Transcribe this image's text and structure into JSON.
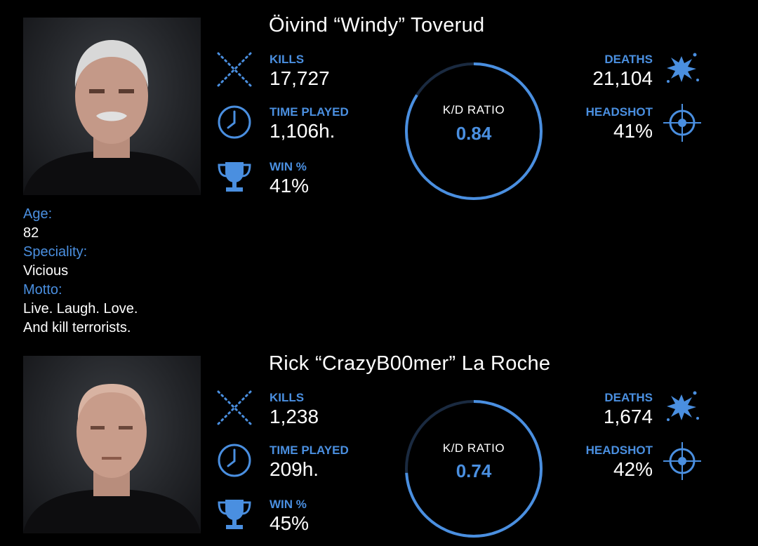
{
  "players": [
    {
      "name": "Öivind “Windy” Toverud",
      "kills_label": "KILLS",
      "kills": "17,727",
      "time_label": "TIME PLAYED",
      "time": "1,106h.",
      "win_label": "WIN %",
      "win": "41%",
      "kd_label": "K/D RATIO",
      "kd": "0.84",
      "kd_fraction": 0.84,
      "deaths_label": "DEATHS",
      "deaths": "21,104",
      "headshot_label": "HEADSHOT",
      "headshot": "41%",
      "bio": {
        "age_label": "Age:",
        "age": "82",
        "speciality_label": "Speciality:",
        "speciality": "Vicious",
        "motto_label": "Motto:",
        "motto": "Live. Laugh. Love.\nAnd kill terrorists."
      }
    },
    {
      "name": "Rick “CrazyB00mer” La Roche",
      "kills_label": "KILLS",
      "kills": "1,238",
      "time_label": "TIME PLAYED",
      "time": "209h.",
      "win_label": "WIN %",
      "win": "45%",
      "kd_label": "K/D RATIO",
      "kd": "0.74",
      "kd_fraction": 0.74,
      "deaths_label": "DEATHS",
      "deaths": "1,674",
      "headshot_label": "HEADSHOT",
      "headshot": "42%"
    }
  ],
  "colors": {
    "accent": "#4a8fe0",
    "ring_track": "#1a2a40",
    "background": "#000000",
    "text": "#ffffff"
  },
  "icons": {
    "kills": "crossed-swords-icon",
    "time": "clock-icon",
    "win": "trophy-icon",
    "deaths": "splatter-icon",
    "headshot": "crosshair-icon"
  }
}
